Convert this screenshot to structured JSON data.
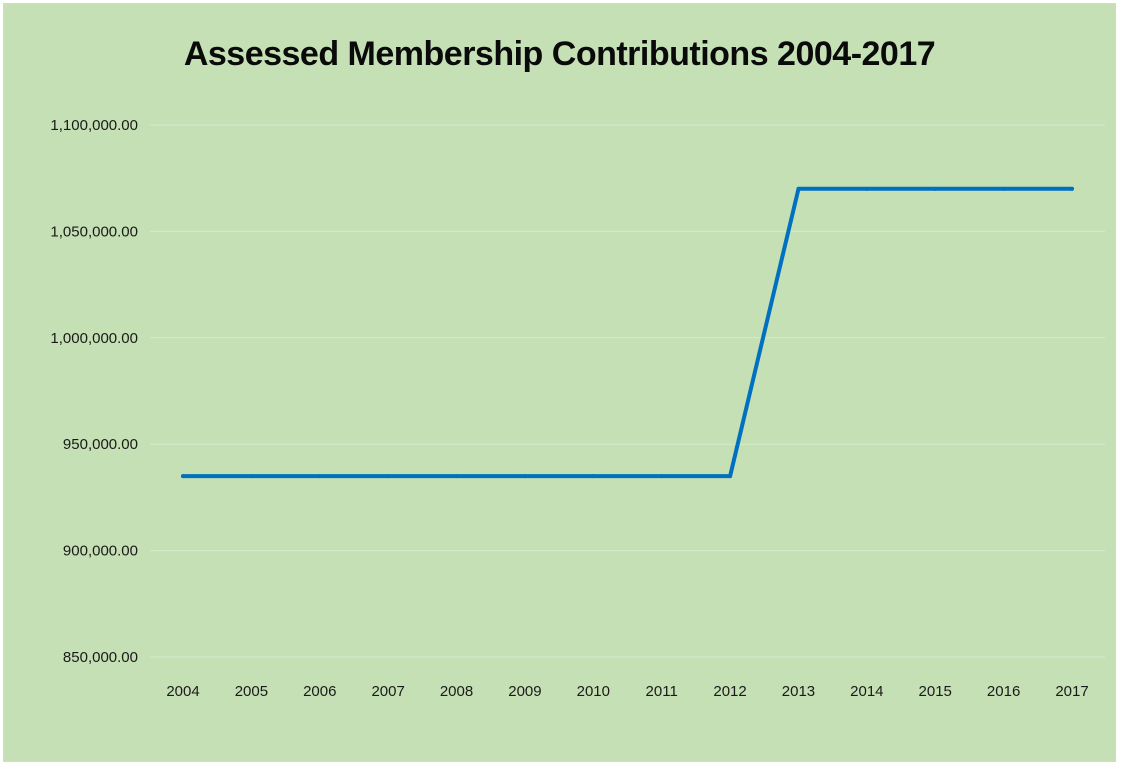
{
  "chart_data": {
    "type": "line",
    "title": "Assessed Membership Contributions 2004-2017",
    "xlabel": "",
    "ylabel": "",
    "categories": [
      "2004",
      "2005",
      "2006",
      "2007",
      "2008",
      "2009",
      "2010",
      "2011",
      "2012",
      "2013",
      "2014",
      "2015",
      "2016",
      "2017"
    ],
    "series": [
      {
        "values": [
          935000,
          935000,
          935000,
          935000,
          935000,
          935000,
          935000,
          935000,
          935000,
          1070000,
          1070000,
          1070000,
          1070000,
          1070000
        ],
        "color": "#0070c0"
      }
    ],
    "ylim": [
      850000,
      1100000
    ],
    "yticks": [
      850000,
      900000,
      950000,
      1000000,
      1050000,
      1100000
    ],
    "ytick_labels": [
      "850,000.00",
      "900,000.00",
      "950,000.00",
      "1,000,000.00",
      "1,050,000.00",
      "1,100,000.00"
    ],
    "grid": true,
    "gridline_color": "#d9e9cf",
    "background_color": "#c5e0b4",
    "legend": "none"
  }
}
